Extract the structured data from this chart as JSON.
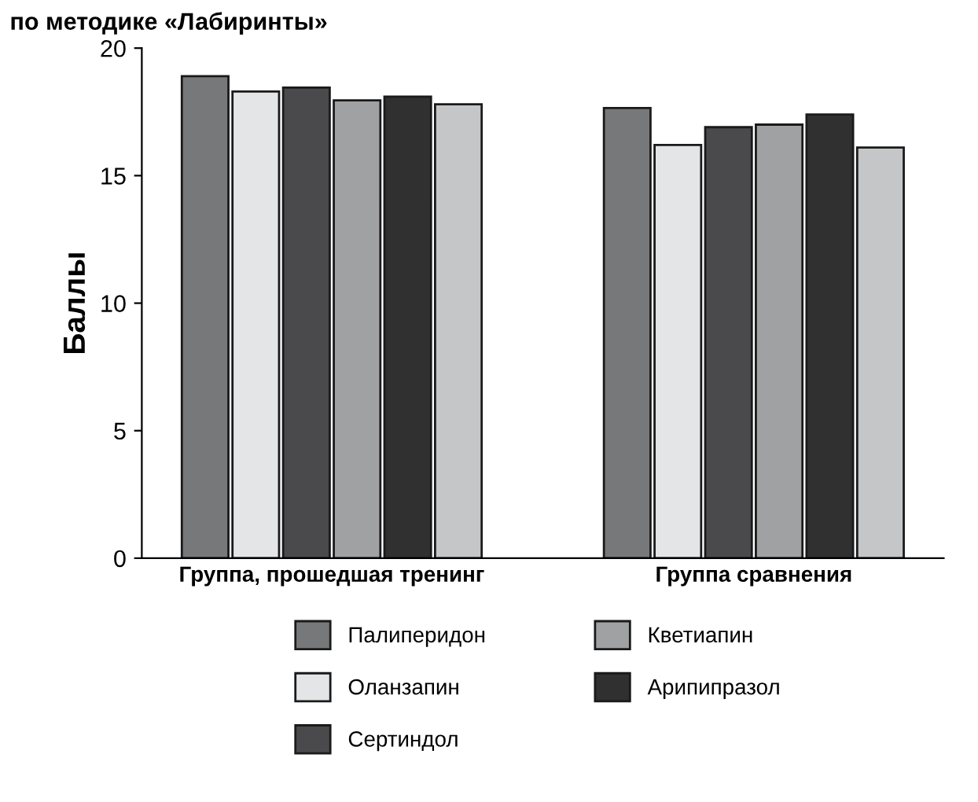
{
  "chart_data": {
    "type": "bar",
    "title": "по методике «Лабиринты»",
    "ylabel": "Баллы",
    "categories": [
      "Группа, прошедшая тренинг",
      "Группа сравнения"
    ],
    "series": [
      {
        "name": "Палиперидон",
        "color": "#77787a",
        "values": [
          18.9,
          17.65
        ]
      },
      {
        "name": "Оланзапин",
        "color": "#e4e5e7",
        "values": [
          18.3,
          16.2
        ]
      },
      {
        "name": "Сертиндол",
        "color": "#4a4a4c",
        "values": [
          18.45,
          16.9
        ]
      },
      {
        "name": "Кветиапин",
        "color": "#a0a1a3",
        "values": [
          17.95,
          17.0
        ]
      },
      {
        "name": "Арипипразол",
        "color": "#313031",
        "values": [
          18.1,
          17.4
        ]
      },
      {
        "color": "#c5c6c8",
        "values": [
          17.8,
          16.1
        ]
      }
    ],
    "ylim": [
      0,
      20
    ],
    "yticks": [
      0,
      5,
      10,
      15,
      20
    ],
    "grid": false,
    "legend": "bottom"
  }
}
